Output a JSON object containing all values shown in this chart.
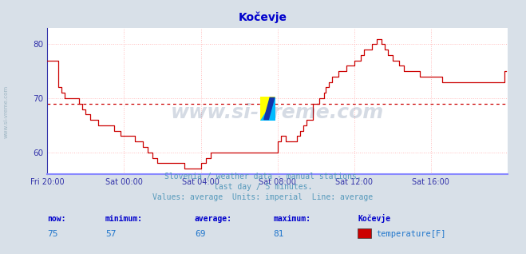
{
  "title": "Kočevje",
  "title_color": "#0000cc",
  "bg_color": "#d8e0e8",
  "plot_bg_color": "#ffffff",
  "grid_color": "#ffbbbb",
  "axis_color": "#3333aa",
  "xaxis_line_color": "#8888ff",
  "line_color": "#cc0000",
  "avg_line_color": "#cc0000",
  "avg_line_value": 69,
  "xlim_start": 0,
  "xlim_end": 288,
  "ylim_min": 56,
  "ylim_max": 83,
  "yticks": [
    60,
    70,
    80
  ],
  "xtick_labels": [
    "Fri 20:00",
    "Sat 00:00",
    "Sat 04:00",
    "Sat 08:00",
    "Sat 12:00",
    "Sat 16:00"
  ],
  "xtick_positions": [
    0,
    48,
    96,
    144,
    192,
    240
  ],
  "watermark_text": "www.si-vreme.com",
  "watermark_color": "#1a3a6a",
  "watermark_alpha": 0.18,
  "subtitle1": "Slovenia / weather data - manual stations.",
  "subtitle2": "last day / 5 minutes.",
  "subtitle3": "Values: average  Units: imperial  Line: average",
  "subtitle_color": "#5599bb",
  "footer_label_color": "#0000cc",
  "footer_value_color": "#2277cc",
  "footer_now": "75",
  "footer_min": "57",
  "footer_avg": "69",
  "footer_max": "81",
  "footer_station": "Kočevje",
  "legend_label": "temperature[F]",
  "legend_color": "#cc0000",
  "sidewater_text": "www.si-vreme.com",
  "sidewater_color": "#7799aa",
  "sidewater_alpha": 0.6,
  "temperature_data": [
    77,
    77,
    77,
    77,
    77,
    77,
    77,
    72,
    72,
    71,
    71,
    70,
    70,
    70,
    70,
    70,
    70,
    70,
    70,
    70,
    69,
    69,
    68,
    68,
    67,
    67,
    67,
    66,
    66,
    66,
    66,
    66,
    65,
    65,
    65,
    65,
    65,
    65,
    65,
    65,
    65,
    65,
    64,
    64,
    64,
    64,
    63,
    63,
    63,
    63,
    63,
    63,
    63,
    63,
    63,
    62,
    62,
    62,
    62,
    62,
    61,
    61,
    61,
    60,
    60,
    60,
    59,
    59,
    59,
    58,
    58,
    58,
    58,
    58,
    58,
    58,
    58,
    58,
    58,
    58,
    58,
    58,
    58,
    58,
    58,
    58,
    57,
    57,
    57,
    57,
    57,
    57,
    57,
    57,
    57,
    57,
    58,
    58,
    58,
    59,
    59,
    59,
    60,
    60,
    60,
    60,
    60,
    60,
    60,
    60,
    60,
    60,
    60,
    60,
    60,
    60,
    60,
    60,
    60,
    60,
    60,
    60,
    60,
    60,
    60,
    60,
    60,
    60,
    60,
    60,
    60,
    60,
    60,
    60,
    60,
    60,
    60,
    60,
    60,
    60,
    60,
    60,
    60,
    60,
    62,
    62,
    63,
    63,
    63,
    62,
    62,
    62,
    62,
    62,
    62,
    62,
    63,
    63,
    64,
    64,
    65,
    65,
    66,
    66,
    66,
    66,
    69,
    69,
    69,
    69,
    70,
    70,
    70,
    71,
    72,
    72,
    73,
    73,
    74,
    74,
    74,
    74,
    75,
    75,
    75,
    75,
    75,
    76,
    76,
    76,
    76,
    76,
    77,
    77,
    77,
    77,
    78,
    78,
    79,
    79,
    79,
    79,
    79,
    80,
    80,
    80,
    81,
    81,
    81,
    80,
    80,
    79,
    79,
    78,
    78,
    78,
    77,
    77,
    77,
    77,
    76,
    76,
    76,
    75,
    75,
    75,
    75,
    75,
    75,
    75,
    75,
    75,
    75,
    74,
    74,
    74,
    74,
    74,
    74,
    74,
    74,
    74,
    74,
    74,
    74,
    74,
    74,
    73,
    73,
    73,
    73,
    73,
    73,
    73,
    73,
    73,
    73,
    73,
    73,
    73,
    73,
    73,
    73,
    73,
    73,
    73,
    73,
    73,
    73,
    73,
    73,
    73,
    73,
    73,
    73,
    73,
    73,
    73,
    73,
    73,
    73,
    73,
    73,
    73,
    73,
    73,
    75,
    75
  ]
}
